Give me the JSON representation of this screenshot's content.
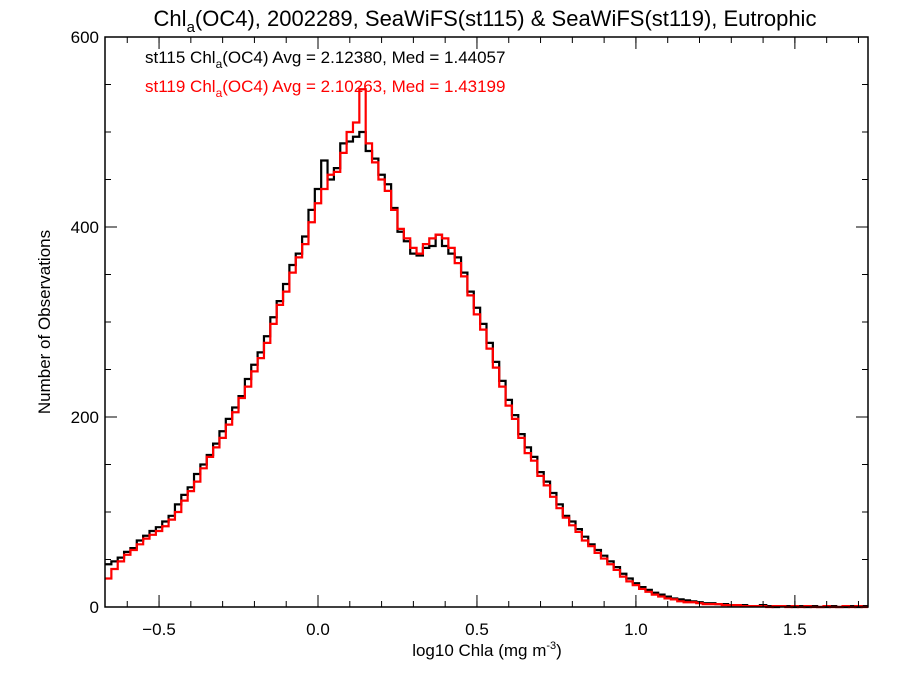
{
  "chart_data": {
    "type": "histogram",
    "title": {
      "prefix": "Chl",
      "sub": "a",
      "suffix": "(OC4), 2002289, SeaWiFS(st115) & SeaWiFS(st119), Eutrophic"
    },
    "xlabel": {
      "main": "log10 Chla (mg m",
      "sup": "-3",
      "end": ")"
    },
    "ylabel": "Number of Observations",
    "xlim": [
      -0.67,
      1.73
    ],
    "ylim": [
      0,
      600
    ],
    "xticks": [
      -0.5,
      0.0,
      0.5,
      1.0,
      1.5
    ],
    "xtick_labels": [
      "−0.5",
      "0.0",
      "0.5",
      "1.0",
      "1.5"
    ],
    "x_minor_step": 0.1,
    "yticks": [
      0,
      200,
      400,
      600
    ],
    "ytick_labels": [
      "0",
      "200",
      "400",
      "600"
    ],
    "y_minor_step": 50,
    "grid": false,
    "bin_start": -0.67,
    "bin_width": 0.02,
    "series": [
      {
        "name": "st115",
        "color": "#000000",
        "legend": {
          "prefix": "st115 Chl",
          "sub": "a",
          "suffix": "(OC4) Avg = 2.12380, Med = 1.44057"
        },
        "values": [
          45,
          48,
          52,
          58,
          62,
          70,
          75,
          80,
          84,
          90,
          96,
          108,
          118,
          126,
          140,
          150,
          160,
          172,
          185,
          198,
          210,
          222,
          240,
          255,
          268,
          285,
          305,
          322,
          340,
          360,
          372,
          390,
          418,
          440,
          470,
          450,
          462,
          488,
          490,
          495,
          500,
          480,
          472,
          455,
          445,
          420,
          395,
          385,
          372,
          370,
          378,
          380,
          392,
          380,
          372,
          368,
          352,
          332,
          315,
          298,
          278,
          258,
          238,
          218,
          202,
          182,
          168,
          158,
          142,
          132,
          120,
          108,
          96,
          90,
          82,
          74,
          66,
          60,
          54,
          48,
          42,
          35,
          30,
          25,
          21,
          18,
          15,
          13,
          11,
          9,
          8,
          7,
          6,
          5,
          4,
          4,
          3,
          3,
          2,
          2,
          2,
          1,
          1,
          2,
          1,
          0,
          1,
          1,
          0,
          1,
          0,
          1,
          0,
          0,
          1,
          0,
          0,
          1,
          0,
          1
        ]
      },
      {
        "name": "st119",
        "color": "#ff0000",
        "legend": {
          "prefix": "st119 Chl",
          "sub": "a",
          "suffix": "(OC4) Avg = 2.10263, Med = 1.43199"
        },
        "values": [
          30,
          40,
          48,
          55,
          60,
          66,
          72,
          76,
          80,
          85,
          92,
          100,
          112,
          122,
          132,
          146,
          158,
          168,
          178,
          192,
          205,
          220,
          232,
          248,
          262,
          278,
          298,
          318,
          332,
          352,
          368,
          382,
          405,
          425,
          440,
          455,
          458,
          478,
          500,
          510,
          545,
          488,
          468,
          450,
          438,
          418,
          398,
          388,
          378,
          372,
          382,
          388,
          392,
          388,
          378,
          362,
          348,
          328,
          308,
          292,
          272,
          252,
          232,
          212,
          198,
          178,
          162,
          154,
          138,
          128,
          116,
          104,
          94,
          86,
          79,
          70,
          64,
          57,
          51,
          45,
          39,
          32,
          27,
          23,
          19,
          16,
          13,
          11,
          9,
          8,
          6,
          5,
          5,
          4,
          3,
          3,
          3,
          2,
          2,
          2,
          1,
          1,
          1,
          1,
          0,
          1,
          1,
          0,
          1,
          0,
          1,
          0,
          0,
          1,
          0,
          0,
          1,
          0,
          1,
          0
        ]
      }
    ]
  }
}
